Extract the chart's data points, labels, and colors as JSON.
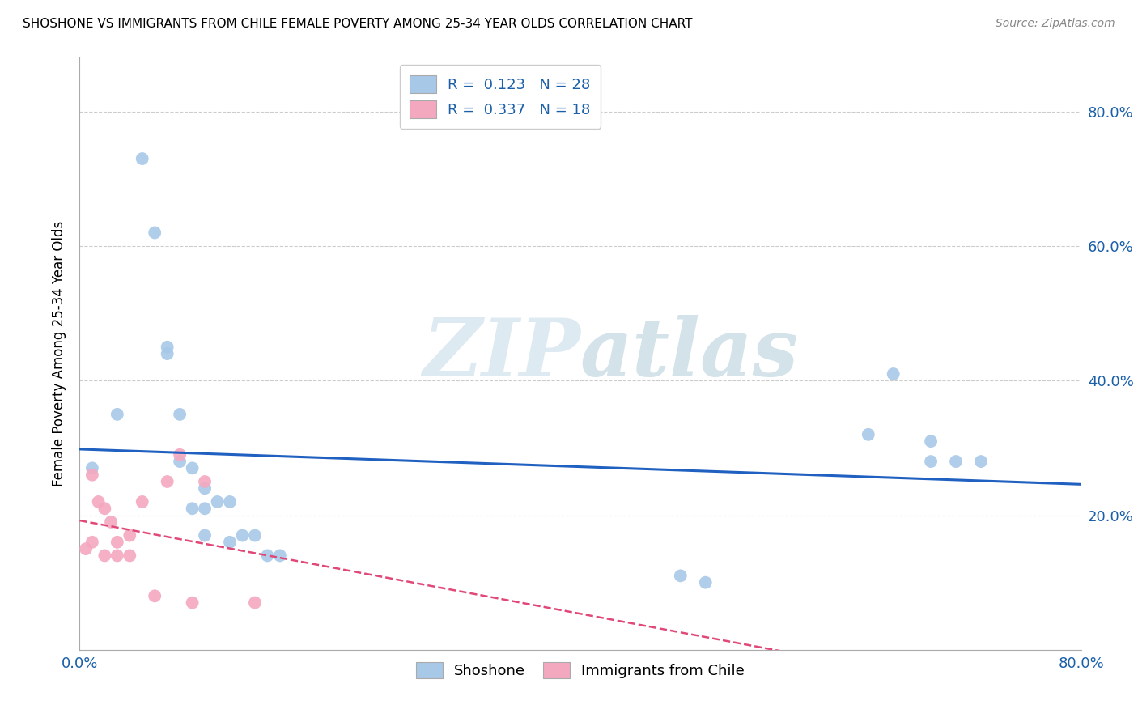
{
  "title": "SHOSHONE VS IMMIGRANTS FROM CHILE FEMALE POVERTY AMONG 25-34 YEAR OLDS CORRELATION CHART",
  "source": "Source: ZipAtlas.com",
  "ylabel": "Female Poverty Among 25-34 Year Olds",
  "xlim": [
    0.0,
    0.8
  ],
  "ylim": [
    0.0,
    0.88
  ],
  "xticks": [
    0.0,
    0.1,
    0.2,
    0.3,
    0.4,
    0.5,
    0.6,
    0.7,
    0.8
  ],
  "xticklabels": [
    "0.0%",
    "",
    "",
    "",
    "",
    "",
    "",
    "",
    "80.0%"
  ],
  "yticks": [
    0.0,
    0.2,
    0.4,
    0.6,
    0.8
  ],
  "yticklabels": [
    "",
    "20.0%",
    "40.0%",
    "60.0%",
    "80.0%"
  ],
  "shoshone_color": "#a8c8e8",
  "chile_color": "#f4a8c0",
  "shoshone_R": 0.123,
  "shoshone_N": 28,
  "chile_R": 0.337,
  "chile_N": 18,
  "shoshone_line_color": "#2060c0",
  "chile_line_color": "#e04878",
  "grid_color": "#cccccc",
  "watermark_color": "#d8e8f0",
  "legend_color": "#1a5fa8",
  "shoshone_x": [
    0.01,
    0.03,
    0.05,
    0.06,
    0.07,
    0.07,
    0.08,
    0.08,
    0.09,
    0.09,
    0.1,
    0.1,
    0.1,
    0.11,
    0.12,
    0.12,
    0.13,
    0.14,
    0.15,
    0.16,
    0.5,
    0.63,
    0.65,
    0.68,
    0.68,
    0.7,
    0.72,
    0.48
  ],
  "shoshone_y": [
    0.27,
    0.35,
    0.73,
    0.62,
    0.45,
    0.44,
    0.35,
    0.28,
    0.27,
    0.21,
    0.24,
    0.21,
    0.17,
    0.22,
    0.22,
    0.16,
    0.17,
    0.17,
    0.14,
    0.14,
    0.1,
    0.32,
    0.41,
    0.31,
    0.28,
    0.28,
    0.28,
    0.11
  ],
  "chile_x": [
    0.005,
    0.01,
    0.01,
    0.015,
    0.02,
    0.02,
    0.025,
    0.03,
    0.03,
    0.04,
    0.04,
    0.05,
    0.06,
    0.07,
    0.08,
    0.09,
    0.1,
    0.14
  ],
  "chile_y": [
    0.15,
    0.26,
    0.16,
    0.22,
    0.21,
    0.14,
    0.19,
    0.16,
    0.14,
    0.17,
    0.14,
    0.22,
    0.08,
    0.25,
    0.29,
    0.07,
    0.25,
    0.07
  ]
}
